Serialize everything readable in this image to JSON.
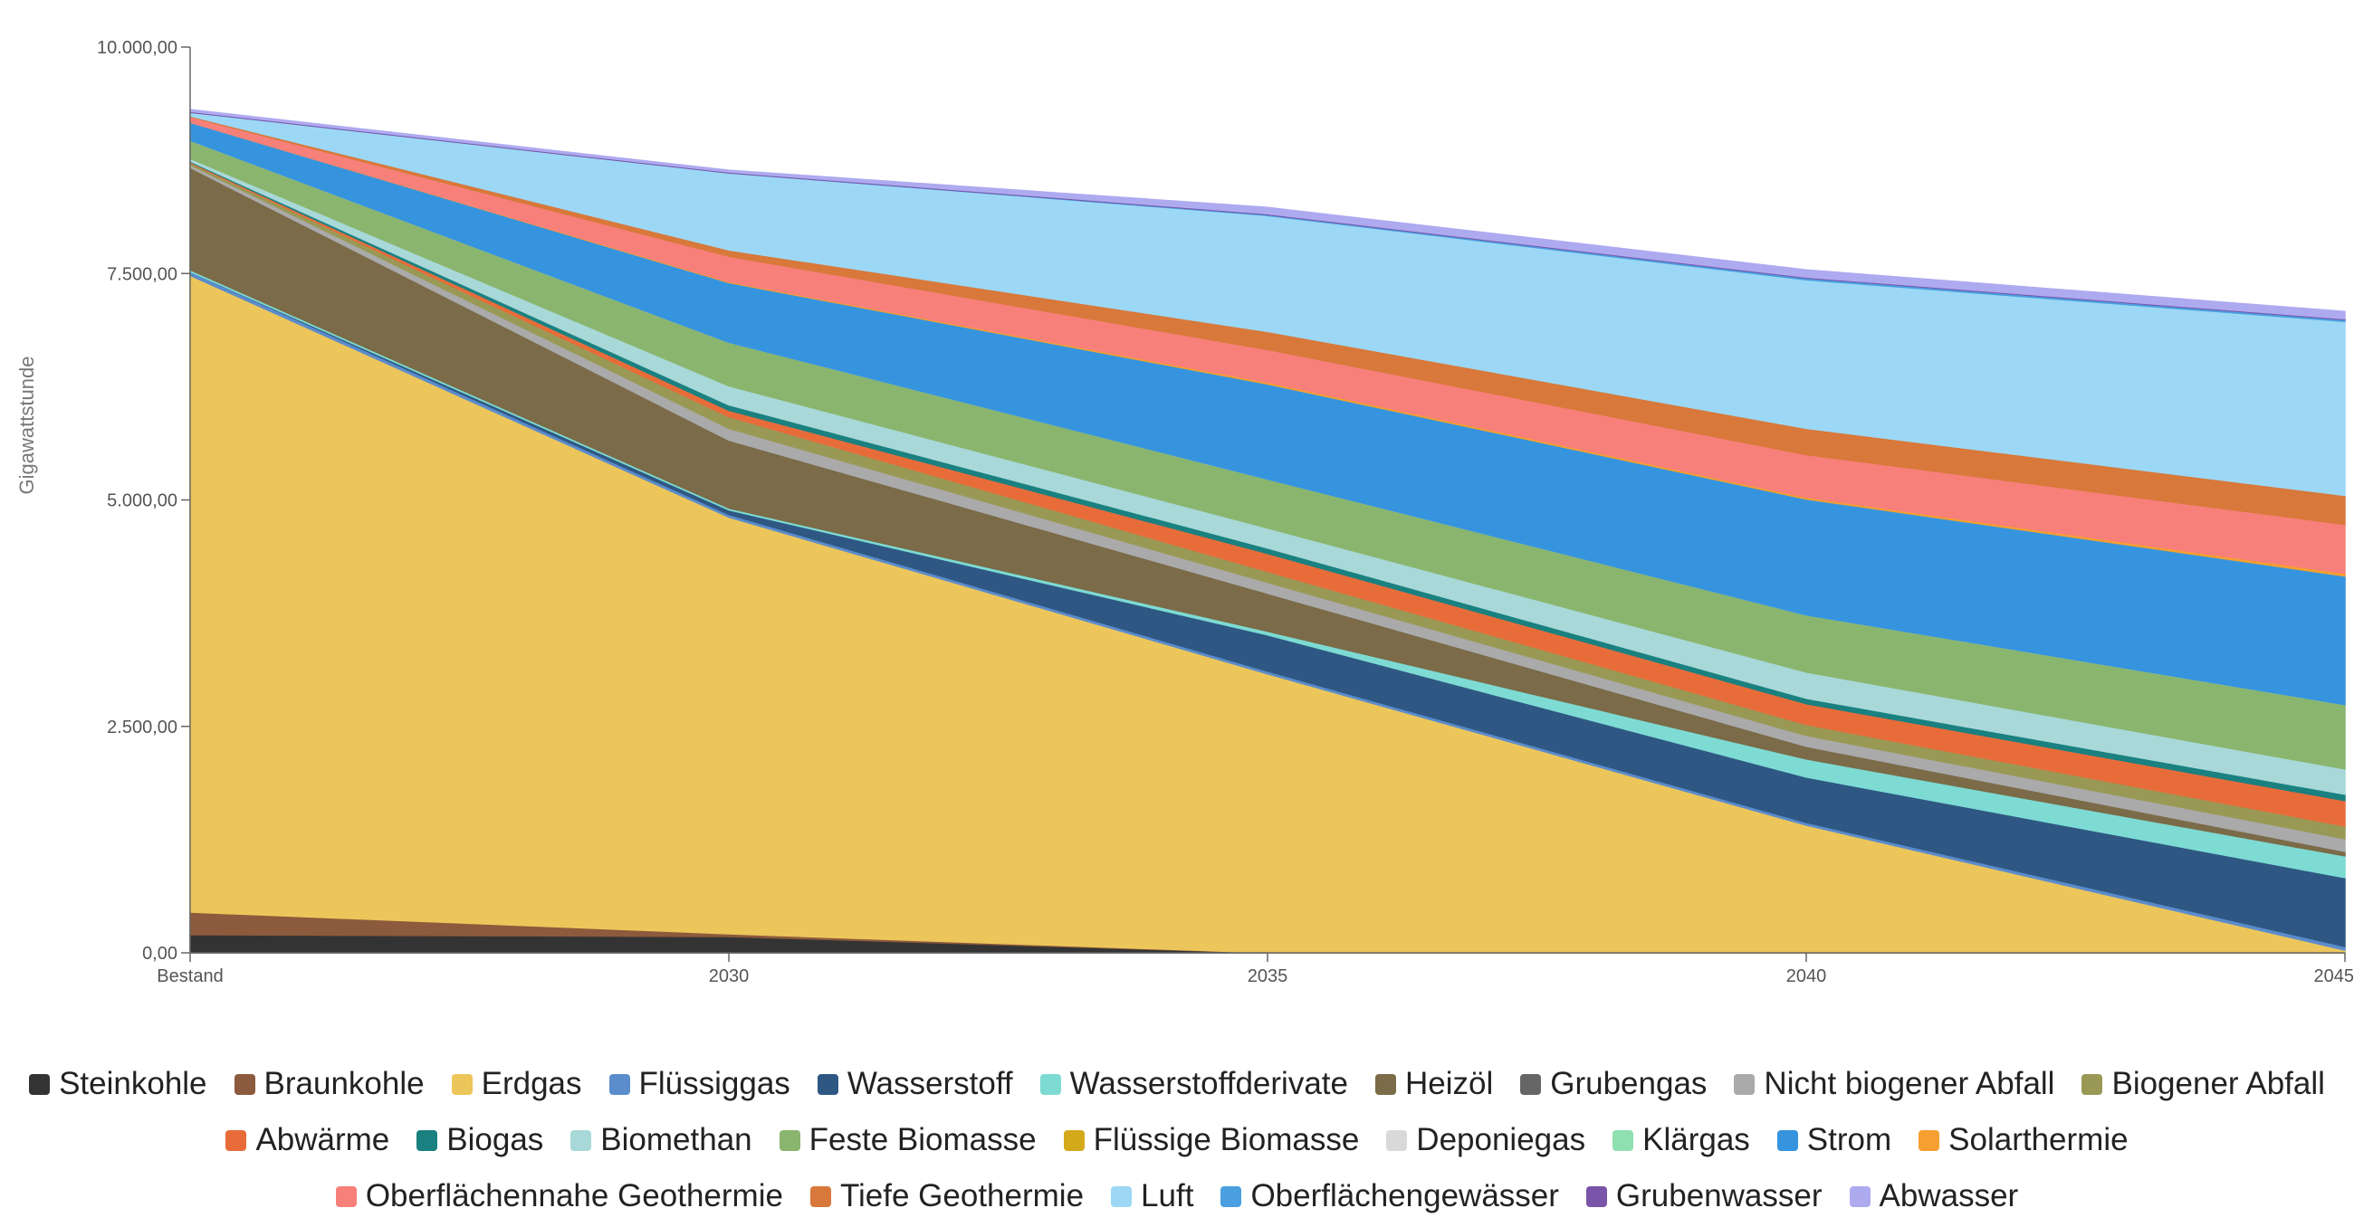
{
  "chart_data": {
    "type": "area",
    "stacked": true,
    "title": "",
    "xlabel": "",
    "ylabel": "Gigawattstunde",
    "x": [
      "Bestand",
      "2030",
      "2035",
      "2040",
      "2045"
    ],
    "yticks": [
      "0,00",
      "2.500,00",
      "5.000,00",
      "7.500,00",
      "10.000,00"
    ],
    "ylim": [
      0,
      10000
    ],
    "legend_position": "bottom",
    "series": [
      {
        "name": "Steinkohle",
        "color": "#333333",
        "values": [
          200,
          180,
          0,
          0,
          0
        ]
      },
      {
        "name": "Braunkohle",
        "color": "#8c5a3c",
        "values": [
          250,
          30,
          0,
          0,
          0
        ]
      },
      {
        "name": "Erdgas",
        "color": "#ecc65a",
        "values": [
          7030,
          4600,
          3080,
          1410,
          30
        ]
      },
      {
        "name": "Flüssiggas",
        "color": "#5b8ccc",
        "values": [
          40,
          30,
          30,
          30,
          40
        ]
      },
      {
        "name": "Wasserstoff",
        "color": "#2e5883",
        "values": [
          0,
          50,
          400,
          500,
          760
        ]
      },
      {
        "name": "Wasserstoffderivate",
        "color": "#7ddbd3",
        "values": [
          20,
          20,
          40,
          200,
          240
        ]
      },
      {
        "name": "Heizöl",
        "color": "#7b6b48",
        "values": [
          1130,
          750,
          420,
          140,
          50
        ]
      },
      {
        "name": "Grubengas",
        "color": "#666666",
        "values": [
          0,
          0,
          0,
          0,
          0
        ]
      },
      {
        "name": "Nicht biogener Abfall",
        "color": "#aaaaaa",
        "values": [
          30,
          130,
          120,
          120,
          140
        ]
      },
      {
        "name": "Biogener Abfall",
        "color": "#999955",
        "values": [
          20,
          130,
          120,
          120,
          140
        ]
      },
      {
        "name": "Abwärme",
        "color": "#e86c3a",
        "values": [
          10,
          70,
          200,
          230,
          280
        ]
      },
      {
        "name": "Biogas",
        "color": "#1a8080",
        "values": [
          10,
          60,
          60,
          60,
          70
        ]
      },
      {
        "name": "Biomethan",
        "color": "#a8d8d8",
        "values": [
          30,
          210,
          220,
          290,
          280
        ]
      },
      {
        "name": "Feste Biomasse",
        "color": "#8ab56e",
        "values": [
          200,
          480,
          540,
          630,
          710
        ]
      },
      {
        "name": "Flüssige Biomasse",
        "color": "#d4aa1a",
        "values": [
          0,
          0,
          0,
          0,
          0
        ]
      },
      {
        "name": "Deponiegas",
        "color": "#d9d9d9",
        "values": [
          0,
          0,
          0,
          0,
          0
        ]
      },
      {
        "name": "Klärgas",
        "color": "#8ee0b0",
        "values": [
          0,
          0,
          0,
          0,
          0
        ]
      },
      {
        "name": "Strom",
        "color": "#3694df",
        "values": [
          200,
          660,
          1050,
          1280,
          1420
        ]
      },
      {
        "name": "Solarthermie",
        "color": "#f5a030",
        "values": [
          0,
          10,
          20,
          20,
          30
        ]
      },
      {
        "name": "Oberflächennahe Geothermie",
        "color": "#f7807a",
        "values": [
          60,
          280,
          360,
          470,
          540
        ]
      },
      {
        "name": "Tiefe Geothermie",
        "color": "#d8783a",
        "values": [
          10,
          70,
          200,
          290,
          320
        ]
      },
      {
        "name": "Luft",
        "color": "#9cd8f5",
        "values": [
          40,
          850,
          1280,
          1640,
          1920
        ]
      },
      {
        "name": "Oberflächengewässer",
        "color": "#4a9fe0",
        "values": [
          0,
          0,
          10,
          20,
          20
        ]
      },
      {
        "name": "Grubenwasser",
        "color": "#7a54a8",
        "values": [
          10,
          10,
          10,
          10,
          10
        ]
      },
      {
        "name": "Abwasser",
        "color": "#aeaaf0",
        "values": [
          20,
          20,
          70,
          80,
          80
        ]
      }
    ]
  }
}
